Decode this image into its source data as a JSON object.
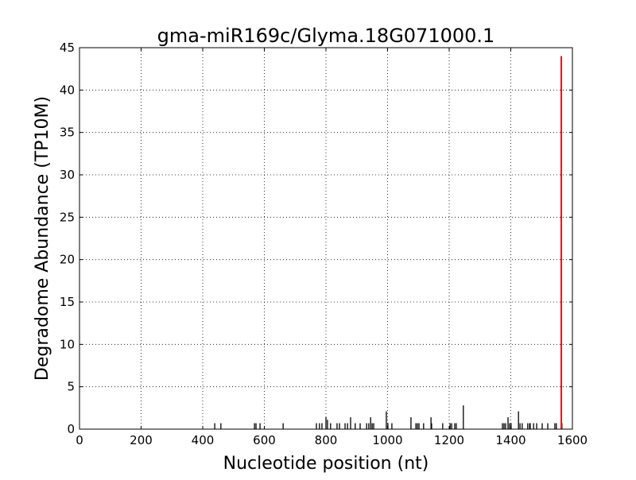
{
  "chart_data": {
    "type": "bar",
    "title": "gma-miR169c/Glyma.18G071000.1",
    "xlabel": "Nucleotide position (nt)",
    "ylabel": "Degradome Abundance (TP10M)",
    "xlim": [
      0,
      1600
    ],
    "ylim": [
      0,
      45
    ],
    "xticks": [
      0,
      200,
      400,
      600,
      800,
      1000,
      1200,
      1400,
      1600
    ],
    "yticks": [
      0,
      5,
      10,
      15,
      20,
      25,
      30,
      35,
      40,
      45
    ],
    "grid": true,
    "colors": {
      "bars": "#000000",
      "highlight": "#ff0000"
    },
    "series": [
      {
        "color": "#000000",
        "x": [
          439,
          459,
          568,
          573,
          586,
          661,
          769,
          779,
          787,
          800,
          805,
          815,
          836,
          844,
          862,
          870,
          880,
          895,
          911,
          932,
          939,
          945,
          950,
          955,
          996,
          1001,
          1014,
          1076,
          1092,
          1097,
          1102,
          1117,
          1141,
          1143,
          1179,
          1203,
          1208,
          1218,
          1223,
          1246,
          1373,
          1378,
          1383,
          1391,
          1396,
          1401,
          1425,
          1430,
          1437,
          1455,
          1461,
          1463,
          1474,
          1484,
          1502,
          1520,
          1543,
          1548,
          1566
        ],
        "values": [
          0.7,
          0.7,
          0.7,
          0.7,
          0.7,
          0.7,
          0.7,
          0.7,
          0.7,
          1.4,
          1.1,
          0.7,
          0.7,
          0.7,
          0.7,
          0.7,
          1.4,
          0.7,
          0.7,
          0.7,
          0.7,
          1.4,
          0.7,
          0.7,
          2.1,
          0.7,
          0.7,
          1.4,
          0.7,
          0.7,
          0.7,
          0.7,
          1.4,
          0.7,
          0.7,
          0.7,
          0.7,
          0.7,
          0.7,
          2.8,
          0.7,
          0.7,
          0.7,
          1.4,
          0.7,
          0.7,
          2.1,
          0.7,
          0.7,
          0.7,
          0.7,
          0.7,
          0.7,
          0.7,
          0.7,
          0.7,
          0.7,
          0.7,
          0.7
        ]
      },
      {
        "color": "#ff0000",
        "x": [
          1564
        ],
        "values": [
          44
        ]
      }
    ]
  }
}
